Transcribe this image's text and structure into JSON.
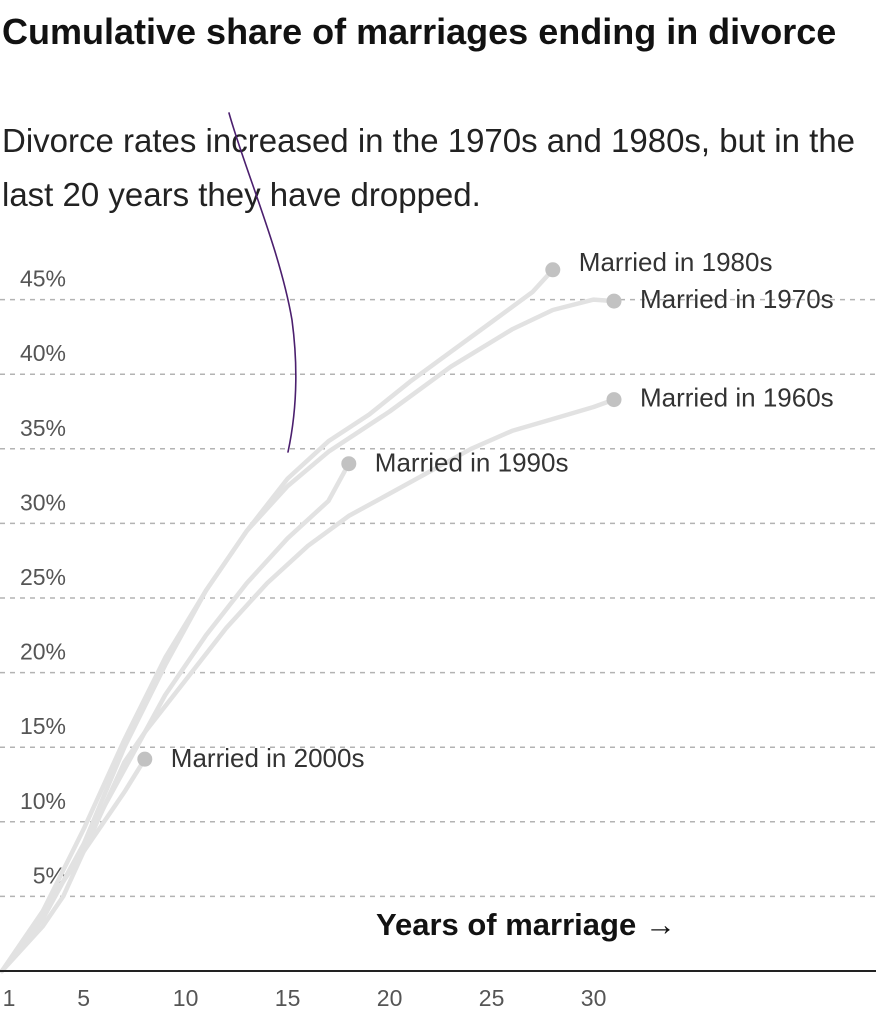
{
  "chart_data": {
    "type": "line",
    "title": "Cumulative share of marriages ending in divorce",
    "subtitle": "Divorce rates increased in the 1970s and 1980s, but in the last 20 years they have dropped.",
    "xlabel": "Years of marriage →",
    "ylabel": "",
    "xlim": [
      1,
      45
    ],
    "ylim": [
      0,
      48
    ],
    "x_ticks": [
      1,
      5,
      10,
      15,
      20,
      25,
      30
    ],
    "y_ticks": [
      5,
      10,
      15,
      20,
      25,
      30,
      35,
      40,
      45
    ],
    "y_tick_labels": [
      "5%",
      "10%",
      "15%",
      "20%",
      "25%",
      "30%",
      "35%",
      "40%",
      "45%"
    ],
    "grid": true,
    "colors": {
      "line": "#e2e2e2",
      "endpoint": "#c2c2c2",
      "grid": "#b3b3b3",
      "axis": "#222222",
      "annotation_stroke": "#4b1f6e"
    },
    "series": [
      {
        "name": "Married in 1960s",
        "label": "Married in 1960s",
        "points": [
          [
            1,
            0
          ],
          [
            3,
            3
          ],
          [
            4,
            5
          ],
          [
            5,
            8
          ],
          [
            6,
            11
          ],
          [
            7,
            14
          ],
          [
            8,
            16
          ],
          [
            10,
            19.5
          ],
          [
            12,
            23
          ],
          [
            14,
            26
          ],
          [
            16,
            28.5
          ],
          [
            18,
            30.5
          ],
          [
            20,
            32
          ],
          [
            22,
            33.5
          ],
          [
            24,
            35
          ],
          [
            26,
            36.2
          ],
          [
            28,
            37
          ],
          [
            30,
            37.8
          ],
          [
            31,
            38.3
          ]
        ]
      },
      {
        "name": "Married in 1970s",
        "label": "Married in 1970s",
        "points": [
          [
            1,
            0
          ],
          [
            3,
            3.5
          ],
          [
            5,
            8.5
          ],
          [
            7,
            15
          ],
          [
            9,
            20.5
          ],
          [
            11,
            25.5
          ],
          [
            13,
            29.5
          ],
          [
            15,
            32.5
          ],
          [
            17,
            34.8
          ],
          [
            20,
            37.5
          ],
          [
            23,
            40.5
          ],
          [
            26,
            43
          ],
          [
            28,
            44.3
          ],
          [
            30,
            45
          ],
          [
            31,
            44.9
          ]
        ]
      },
      {
        "name": "Married in 1980s",
        "label": "Married in 1980s",
        "points": [
          [
            1,
            0
          ],
          [
            3,
            4
          ],
          [
            5,
            9.5
          ],
          [
            7,
            15.5
          ],
          [
            9,
            21
          ],
          [
            11,
            25.5
          ],
          [
            13,
            29.5
          ],
          [
            15,
            33
          ],
          [
            17,
            35.5
          ],
          [
            19,
            37.3
          ],
          [
            21,
            39.5
          ],
          [
            23,
            41.5
          ],
          [
            25,
            43.5
          ],
          [
            27,
            45.5
          ],
          [
            28,
            47
          ]
        ]
      },
      {
        "name": "Married in 1990s",
        "label": "Married in 1990s",
        "points": [
          [
            1,
            0
          ],
          [
            3,
            3.5
          ],
          [
            5,
            8.5
          ],
          [
            7,
            13.5
          ],
          [
            9,
            18.5
          ],
          [
            11,
            22.5
          ],
          [
            13,
            26
          ],
          [
            15,
            29
          ],
          [
            17,
            31.5
          ],
          [
            18,
            34
          ]
        ]
      },
      {
        "name": "Married in 2000s",
        "label": "Married in 2000s",
        "points": [
          [
            1,
            0
          ],
          [
            3,
            4
          ],
          [
            5,
            8
          ],
          [
            7,
            12
          ],
          [
            8,
            14.2
          ]
        ]
      }
    ]
  }
}
